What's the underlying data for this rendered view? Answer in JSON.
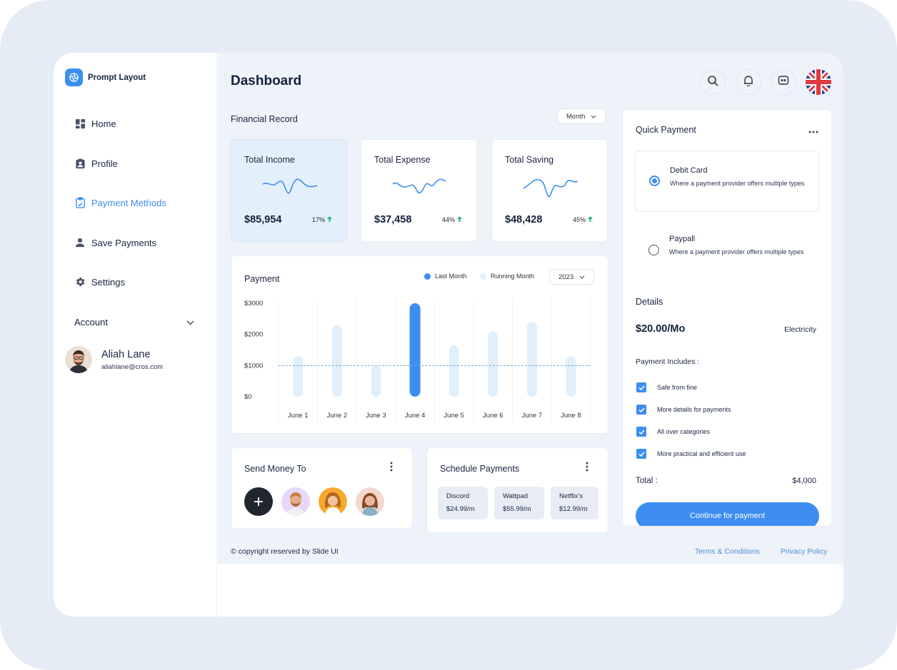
{
  "brand": {
    "name": "Prompt Layout",
    "logo_icon": "aperture-icon",
    "accent": "#3d8ef0"
  },
  "sidebar": {
    "items": [
      {
        "label": "Home",
        "icon": "grid-icon"
      },
      {
        "label": "Profile",
        "icon": "id-card-icon"
      },
      {
        "label": "Payment Methods",
        "icon": "clipboard-icon",
        "active": true
      },
      {
        "label": "Save Payments",
        "icon": "user-icon"
      },
      {
        "label": "Settings",
        "icon": "gear-icon"
      }
    ],
    "account_label": "Account",
    "user": {
      "name": "Aliah Lane",
      "email": "aliahlane@cros.com"
    }
  },
  "header": {
    "title": "Dashboard",
    "icons": [
      "search-icon",
      "bell-icon",
      "chat-icon",
      "uk-flag-icon"
    ]
  },
  "financial": {
    "label": "Financial Record",
    "period": "Month",
    "cards": [
      {
        "title": "Total Income",
        "value": "$85,954",
        "pct": "17%"
      },
      {
        "title": "Total Expense",
        "value": "$37,458",
        "pct": "44%"
      },
      {
        "title": "Total Saving",
        "value": "$48,428",
        "pct": "45%"
      }
    ]
  },
  "payment_chart": {
    "title": "Payment",
    "legend": [
      "Last Month",
      "Running Month"
    ],
    "year": "2023"
  },
  "chart_data": {
    "type": "bar",
    "categories": [
      "June 1",
      "June 2",
      "June 3",
      "June 4",
      "June 5",
      "June 6",
      "June 7",
      "June 8"
    ],
    "yticks": [
      "$3000",
      "$2000",
      "$1000",
      "$0"
    ],
    "ylim": [
      0,
      3000
    ],
    "values": [
      1300,
      2300,
      1000,
      3000,
      1650,
      2100,
      2400,
      1300
    ],
    "highlight_index": 3,
    "reference_line": 1000,
    "colors": {
      "highlight": "#3d8ef0",
      "bar": "#e1effb",
      "reference": "#6aa8e8"
    }
  },
  "send_money": {
    "title": "Send Money To"
  },
  "schedule": {
    "title": "Schedule Payments",
    "items": [
      {
        "name": "Discord",
        "price": "$24.99/m"
      },
      {
        "name": "Wattpad",
        "price": "$55.99/m"
      },
      {
        "name": "Netflix's",
        "price": "$12.99/m"
      }
    ]
  },
  "quick_payment": {
    "title": "Quick Payment",
    "options": [
      {
        "title": "Debit Card",
        "desc": "Where a payment provider offers multiple types",
        "selected": true
      },
      {
        "title": "Paypall",
        "desc": "Where a payment provider offers multiple types",
        "selected": false
      }
    ],
    "details_label": "Details",
    "amount": "$20.00/Mo",
    "category": "Electricity",
    "includes_label": "Payment Includes :",
    "includes": [
      "Safe from fine",
      "More details for payments",
      "All over categories",
      "More practical and efficient use"
    ],
    "total_label": "Total :",
    "total_value": "$4,000",
    "cta": "Continue for payment"
  },
  "footer": {
    "copyright": "© copyright reserved by Slide UI",
    "links": [
      "Terms & Conditions",
      "Privacy Policy"
    ]
  }
}
